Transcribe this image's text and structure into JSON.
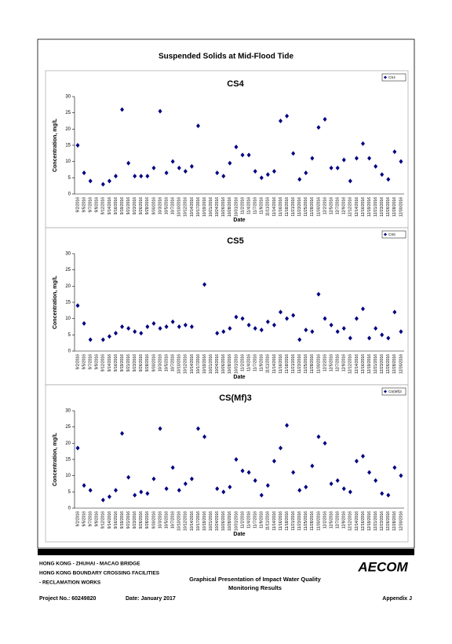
{
  "title": "Suspended Solids at Mid-Flood Tide",
  "chart_data": [
    {
      "type": "scatter",
      "title": "CS4",
      "x_label": "Date",
      "y_label": "Concentration, mg/L",
      "categories": [
        "9/2/2016",
        "9/5/2016",
        "9/7/2016",
        "9/9/2016",
        "9/12/2016",
        "9/14/2016",
        "9/16/2016",
        "9/19/2016",
        "9/21/2016",
        "9/23/2016",
        "9/26/2016",
        "9/28/2016",
        "9/30/2016",
        "10/3/2016",
        "10/5/2016",
        "10/7/2016",
        "10/10/2016",
        "10/12/2016",
        "10/14/2016",
        "10/17/2016",
        "10/19/2016",
        "10/21/2016",
        "10/24/2016",
        "10/26/2016",
        "10/28/2016",
        "10/31/2016",
        "11/2/2016",
        "11/4/2016",
        "11/7/2016",
        "11/9/2016",
        "11/11/2016",
        "11/14/2016",
        "11/16/2016",
        "11/18/2016",
        "11/21/2016",
        "11/23/2016",
        "11/25/2016",
        "11/28/2016",
        "11/30/2016",
        "12/2/2016",
        "12/5/2016",
        "12/7/2016",
        "12/9/2016",
        "12/12/2016",
        "12/14/2016",
        "12/16/2016",
        "12/19/2016",
        "12/21/2016",
        "12/23/2016",
        "12/26/2016",
        "12/28/2016",
        "12/30/2016"
      ],
      "series": [
        {
          "name": "CS4",
          "color": "#000080",
          "values": [
            15,
            6.5,
            4,
            null,
            3,
            4,
            5.5,
            26,
            9.5,
            5.5,
            5.5,
            5.5,
            8,
            25.5,
            6.5,
            10,
            8,
            7,
            8.5,
            21,
            null,
            null,
            6.5,
            5.5,
            9.5,
            14.5,
            12,
            12,
            7,
            5,
            6,
            7,
            22.5,
            24,
            12.5,
            4.5,
            6.5,
            11,
            20.5,
            23,
            8,
            8,
            10.5,
            4,
            11,
            15.5,
            11,
            8.5,
            6,
            4.5,
            13,
            10
          ]
        }
      ],
      "ylim": [
        0,
        30
      ],
      "yticks": [
        0,
        5,
        10,
        15,
        20,
        25,
        30
      ],
      "legend": "upper right"
    },
    {
      "type": "scatter",
      "title": "CS5",
      "x_label": "Date",
      "y_label": "Concentration, mg/L",
      "categories": [
        "9/2/2016",
        "9/5/2016",
        "9/7/2016",
        "9/9/2016",
        "9/12/2016",
        "9/14/2016",
        "9/16/2016",
        "9/19/2016",
        "9/21/2016",
        "9/23/2016",
        "9/26/2016",
        "9/28/2016",
        "9/30/2016",
        "10/3/2016",
        "10/5/2016",
        "10/7/2016",
        "10/10/2016",
        "10/12/2016",
        "10/14/2016",
        "10/17/2016",
        "10/19/2016",
        "10/21/2016",
        "10/24/2016",
        "10/26/2016",
        "10/28/2016",
        "10/31/2016",
        "11/2/2016",
        "11/4/2016",
        "11/7/2016",
        "11/9/2016",
        "11/11/2016",
        "11/14/2016",
        "11/16/2016",
        "11/18/2016",
        "11/21/2016",
        "11/23/2016",
        "11/25/2016",
        "11/28/2016",
        "11/30/2016",
        "12/2/2016",
        "12/5/2016",
        "12/7/2016",
        "12/9/2016",
        "12/12/2016",
        "12/14/2016",
        "12/16/2016",
        "12/19/2016",
        "12/21/2016",
        "12/23/2016",
        "12/26/2016",
        "12/28/2016",
        "12/30/2016"
      ],
      "series": [
        {
          "name": "CS5",
          "color": "#000080",
          "values": [
            14,
            8.5,
            3.5,
            null,
            3.5,
            4.5,
            5.5,
            7.5,
            7,
            6,
            5.5,
            7.5,
            8.5,
            7,
            7.5,
            9,
            7.5,
            8,
            7.5,
            null,
            20.5,
            null,
            5.5,
            6,
            7,
            10.5,
            10,
            8,
            7,
            6.5,
            9,
            8,
            12,
            10,
            11,
            3.5,
            6.5,
            6,
            17.5,
            10,
            8,
            6,
            7,
            4,
            10,
            13,
            4,
            7,
            5,
            4,
            12,
            6
          ]
        }
      ],
      "ylim": [
        0,
        30
      ],
      "yticks": [
        0,
        5,
        10,
        15,
        20,
        25,
        30
      ],
      "legend": "upper right"
    },
    {
      "type": "scatter",
      "title": "CS(Mf)3",
      "x_label": "Date",
      "y_label": "Concentration, mg/L",
      "categories": [
        "9/2/2016",
        "9/5/2016",
        "9/7/2016",
        "9/9/2016",
        "9/12/2016",
        "9/14/2016",
        "9/16/2016",
        "9/19/2016",
        "9/21/2016",
        "9/23/2016",
        "9/26/2016",
        "9/28/2016",
        "9/30/2016",
        "10/3/2016",
        "10/5/2016",
        "10/7/2016",
        "10/10/2016",
        "10/12/2016",
        "10/14/2016",
        "10/17/2016",
        "10/19/2016",
        "10/21/2016",
        "10/24/2016",
        "10/26/2016",
        "10/28/2016",
        "10/31/2016",
        "11/2/2016",
        "11/4/2016",
        "11/7/2016",
        "11/9/2016",
        "11/11/2016",
        "11/14/2016",
        "11/16/2016",
        "11/18/2016",
        "11/21/2016",
        "11/23/2016",
        "11/25/2016",
        "11/28/2016",
        "11/30/2016",
        "12/2/2016",
        "12/5/2016",
        "12/7/2016",
        "12/9/2016",
        "12/12/2016",
        "12/14/2016",
        "12/16/2016",
        "12/19/2016",
        "12/21/2016",
        "12/23/2016",
        "12/26/2016",
        "12/28/2016",
        "12/30/2016"
      ],
      "series": [
        {
          "name": "CS(Mf)3",
          "color": "#000080",
          "values": [
            18.5,
            7,
            5.5,
            null,
            2.5,
            3.5,
            5.5,
            23,
            9.5,
            4,
            5,
            4.5,
            9,
            24.5,
            6,
            12.5,
            5.5,
            7.5,
            9,
            24.5,
            22,
            null,
            6,
            5,
            6.5,
            15,
            11.5,
            11,
            8.5,
            4,
            7,
            14.5,
            18.5,
            25.5,
            11,
            5.5,
            6.5,
            13,
            22,
            20,
            7.5,
            8.5,
            6,
            5,
            14.5,
            16,
            11,
            8.5,
            4.5,
            4,
            12.5,
            10
          ]
        }
      ],
      "ylim": [
        0,
        30
      ],
      "yticks": [
        0,
        5,
        10,
        15,
        20,
        25,
        30
      ],
      "legend": "upper right"
    }
  ],
  "footer": {
    "project_lines": [
      "HONG KONG - ZHUHAI - MACAO BRIDGE",
      "HONG KONG BOUNDARY CROSSING FACILITIES",
      "- RECLAMATION WORKS"
    ],
    "logo": "AECOM",
    "drawing_title": [
      "Graphical Presentation of Impact Water Quality",
      "Monitoring Results"
    ],
    "project_no": "Project No.: 60249820",
    "date": "Date: January 2017",
    "appendix": "Appendix J"
  }
}
